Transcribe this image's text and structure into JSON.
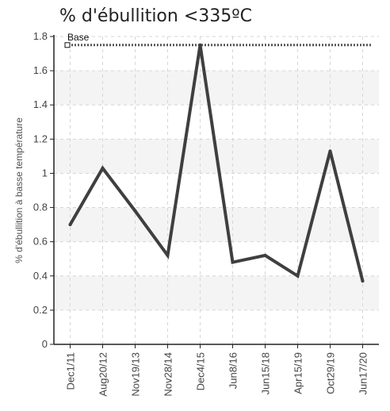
{
  "chart_data": {
    "type": "line",
    "title": "% d'ébullition <335ºC",
    "ylabel": "% d'ébullition à basse température",
    "xlabel": "",
    "categories": [
      "Dec1/11",
      "Aug20/12",
      "Nov19/13",
      "Nov28/14",
      "Dec4/15",
      "Jun8/16",
      "Jun15/18",
      "Apr15/19",
      "Oct29/19",
      "Jun17/20"
    ],
    "series": [
      {
        "values": [
          0.7,
          1.03,
          0.78,
          0.52,
          1.75,
          0.48,
          0.52,
          0.4,
          1.13,
          0.37
        ],
        "color": "#3f3f3f"
      }
    ],
    "baseline": {
      "name": "Base",
      "value": 1.75,
      "color": "#555555",
      "style": "dotted"
    },
    "ylim": [
      0,
      1.8
    ],
    "yticks": [
      "0",
      "0.2",
      "0.4",
      "0.6",
      "0.8",
      "1",
      "1.2",
      "1.4",
      "1.6",
      "1.8"
    ],
    "grid": true,
    "legend": "top-left"
  }
}
